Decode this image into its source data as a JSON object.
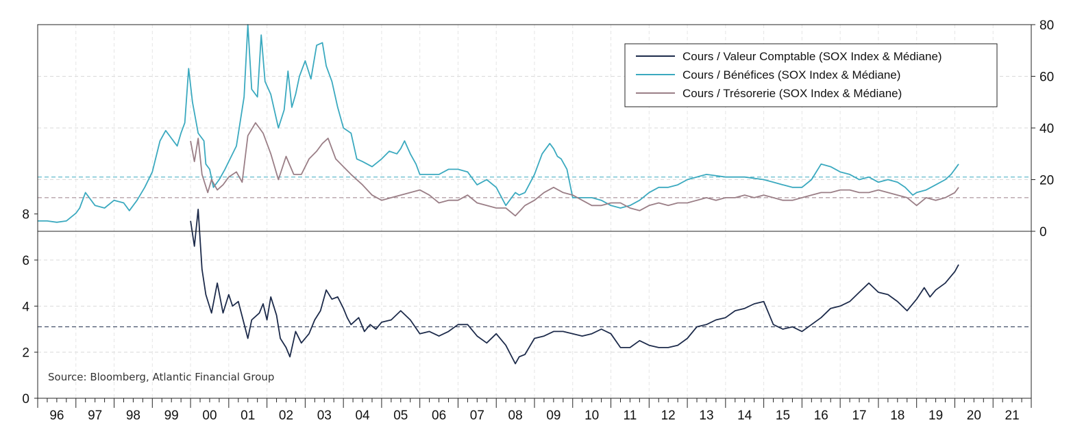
{
  "chart_data": {
    "type": "line",
    "source": "Source: Bloomberg, Atlantic Financial Group",
    "x_tick_labels": [
      "96",
      "97",
      "98",
      "99",
      "00",
      "01",
      "02",
      "03",
      "04",
      "05",
      "06",
      "07",
      "08",
      "09",
      "10",
      "11",
      "12",
      "13",
      "14",
      "15",
      "16",
      "17",
      "18",
      "19",
      "20",
      "21"
    ],
    "x_range": [
      1996.0,
      2022.0
    ],
    "upper_panel": {
      "yaxis_side": "right",
      "ylim": [
        0,
        80
      ],
      "y_ticks": [
        0,
        20,
        40,
        60,
        80
      ],
      "grid": true,
      "legend_position": "top-right",
      "series": [
        {
          "name": "Cours / Bénéfices (SOX Index & Médiane)",
          "color": "#3aa9bf",
          "median": 21,
          "x": [
            1996.0,
            1996.25,
            1996.5,
            1996.75,
            1997.0,
            1997.1,
            1997.25,
            1997.5,
            1997.75,
            1998.0,
            1998.25,
            1998.4,
            1998.6,
            1998.8,
            1999.0,
            1999.2,
            1999.35,
            1999.5,
            1999.65,
            1999.75,
            1999.85,
            1999.95,
            2000.05,
            2000.2,
            2000.35,
            2000.4,
            2000.5,
            2000.6,
            2000.75,
            2000.9,
            2001.0,
            2001.2,
            2001.4,
            2001.5,
            2001.6,
            2001.75,
            2001.85,
            2001.95,
            2002.1,
            2002.3,
            2002.45,
            2002.55,
            2002.65,
            2002.75,
            2002.85,
            2003.0,
            2003.15,
            2003.3,
            2003.45,
            2003.55,
            2003.7,
            2003.85,
            2004.0,
            2004.2,
            2004.35,
            2004.5,
            2004.75,
            2005.0,
            2005.2,
            2005.4,
            2005.5,
            2005.6,
            2005.75,
            2005.9,
            2006.0,
            2006.25,
            2006.5,
            2006.75,
            2007.0,
            2007.25,
            2007.5,
            2007.75,
            2008.0,
            2008.25,
            2008.5,
            2008.6,
            2008.75,
            2009.0,
            2009.2,
            2009.4,
            2009.5,
            2009.6,
            2009.7,
            2009.85,
            2010.0,
            2010.25,
            2010.5,
            2010.75,
            2011.0,
            2011.25,
            2011.5,
            2011.75,
            2012.0,
            2012.25,
            2012.5,
            2012.75,
            2013.0,
            2013.5,
            2014.0,
            2014.5,
            2015.0,
            2015.25,
            2015.5,
            2015.75,
            2016.0,
            2016.25,
            2016.5,
            2016.75,
            2017.0,
            2017.25,
            2017.5,
            2017.75,
            2018.0,
            2018.25,
            2018.5,
            2018.7,
            2018.9,
            2019.0,
            2019.25,
            2019.5,
            2019.75,
            2019.9,
            2020.0,
            2020.1
          ],
          "values": [
            4,
            4,
            3.5,
            4,
            7,
            9,
            15,
            10,
            9,
            12,
            11,
            8,
            12,
            17,
            23,
            35,
            39,
            36,
            33,
            38,
            42,
            63,
            50,
            38,
            35,
            26,
            24,
            17,
            20,
            24,
            27,
            33,
            52,
            80,
            55,
            52,
            76,
            58,
            53,
            40,
            47,
            62,
            48,
            53,
            60,
            66,
            59,
            72,
            73,
            64,
            58,
            48,
            40,
            38,
            28,
            27,
            25,
            28,
            31,
            30,
            32,
            35,
            30,
            26,
            22,
            22,
            22,
            24,
            24,
            23,
            18,
            20,
            17,
            10,
            15,
            14,
            15,
            22,
            30,
            34,
            32,
            29,
            28,
            24,
            13,
            13,
            13,
            12,
            10,
            9,
            10,
            12,
            15,
            17,
            17,
            18,
            20,
            22,
            21,
            21,
            20,
            19,
            18,
            17,
            17,
            20,
            26,
            25,
            23,
            22,
            20,
            21,
            19,
            20,
            19,
            17,
            14,
            15,
            16,
            18,
            20,
            22,
            24,
            26
          ]
        },
        {
          "name": "Cours / Trésorerie (SOX Index & Médiane)",
          "color": "#9a7e86",
          "median": 13,
          "x": [
            2000.0,
            2000.1,
            2000.2,
            2000.3,
            2000.45,
            2000.55,
            2000.7,
            2000.85,
            2001.0,
            2001.2,
            2001.35,
            2001.5,
            2001.7,
            2001.9,
            2002.1,
            2002.3,
            2002.5,
            2002.7,
            2002.9,
            2003.1,
            2003.3,
            2003.45,
            2003.6,
            2003.8,
            2004.0,
            2004.2,
            2004.5,
            2004.75,
            2005.0,
            2005.25,
            2005.5,
            2005.75,
            2006.0,
            2006.25,
            2006.5,
            2006.75,
            2007.0,
            2007.25,
            2007.5,
            2007.75,
            2008.0,
            2008.25,
            2008.5,
            2008.75,
            2009.0,
            2009.25,
            2009.5,
            2009.75,
            2010.0,
            2010.25,
            2010.5,
            2010.75,
            2011.0,
            2011.25,
            2011.5,
            2011.75,
            2012.0,
            2012.25,
            2012.5,
            2012.75,
            2013.0,
            2013.25,
            2013.5,
            2013.75,
            2014.0,
            2014.25,
            2014.5,
            2014.75,
            2015.0,
            2015.25,
            2015.5,
            2015.75,
            2016.0,
            2016.25,
            2016.5,
            2016.75,
            2017.0,
            2017.25,
            2017.5,
            2017.75,
            2018.0,
            2018.25,
            2018.5,
            2018.75,
            2019.0,
            2019.25,
            2019.5,
            2019.75,
            2020.0,
            2020.1
          ],
          "values": [
            35,
            27,
            36,
            22,
            15,
            20,
            16,
            18,
            21,
            23,
            19,
            37,
            42,
            38,
            30,
            20,
            29,
            22,
            22,
            28,
            31,
            34,
            36,
            28,
            25,
            22,
            18,
            14,
            12,
            13,
            14,
            15,
            16,
            14,
            11,
            12,
            12,
            14,
            11,
            10,
            9,
            9,
            6,
            10,
            12,
            15,
            17,
            15,
            14,
            12,
            10,
            10,
            11,
            11,
            9,
            8,
            10,
            11,
            10,
            11,
            11,
            12,
            13,
            12,
            13,
            13,
            14,
            13,
            14,
            13,
            12,
            12,
            13,
            14,
            15,
            15,
            16,
            16,
            15,
            15,
            16,
            15,
            14,
            13,
            10,
            13,
            12,
            13,
            15,
            17
          ]
        }
      ]
    },
    "lower_panel": {
      "yaxis_side": "left",
      "ylim": [
        0,
        9
      ],
      "y_ticks": [
        0,
        2,
        4,
        6,
        8
      ],
      "grid": true,
      "series": [
        {
          "name": "Cours / Valeur Comptable (SOX Index & Médiane)",
          "color": "#1c2a4a",
          "median": 3.1,
          "x": [
            2000.0,
            2000.1,
            2000.2,
            2000.3,
            2000.4,
            2000.55,
            2000.7,
            2000.85,
            2001.0,
            2001.1,
            2001.25,
            2001.5,
            2001.6,
            2001.8,
            2001.9,
            2002.0,
            2002.1,
            2002.25,
            2002.35,
            2002.5,
            2002.6,
            2002.75,
            2002.9,
            2003.1,
            2003.25,
            2003.4,
            2003.55,
            2003.7,
            2003.85,
            2004.0,
            2004.1,
            2004.2,
            2004.4,
            2004.55,
            2004.7,
            2004.85,
            2005.0,
            2005.25,
            2005.5,
            2005.75,
            2006.0,
            2006.25,
            2006.5,
            2006.75,
            2007.0,
            2007.25,
            2007.5,
            2007.75,
            2008.0,
            2008.25,
            2008.5,
            2008.6,
            2008.75,
            2009.0,
            2009.25,
            2009.5,
            2009.75,
            2010.0,
            2010.25,
            2010.5,
            2010.75,
            2011.0,
            2011.25,
            2011.5,
            2011.75,
            2012.0,
            2012.25,
            2012.5,
            2012.75,
            2013.0,
            2013.25,
            2013.5,
            2013.75,
            2014.0,
            2014.25,
            2014.5,
            2014.75,
            2015.0,
            2015.25,
            2015.5,
            2015.75,
            2016.0,
            2016.25,
            2016.5,
            2016.75,
            2017.0,
            2017.25,
            2017.5,
            2017.75,
            2018.0,
            2018.25,
            2018.5,
            2018.75,
            2019.0,
            2019.2,
            2019.35,
            2019.5,
            2019.75,
            2020.0,
            2020.1
          ],
          "values": [
            7.7,
            6.6,
            8.2,
            5.6,
            4.5,
            3.7,
            5.0,
            3.7,
            4.5,
            4.0,
            4.2,
            2.6,
            3.4,
            3.7,
            4.1,
            3.4,
            4.4,
            3.6,
            2.6,
            2.2,
            1.8,
            2.9,
            2.4,
            2.8,
            3.4,
            3.8,
            4.7,
            4.3,
            4.4,
            3.9,
            3.5,
            3.2,
            3.5,
            2.9,
            3.2,
            3.0,
            3.3,
            3.4,
            3.8,
            3.4,
            2.8,
            2.9,
            2.7,
            2.9,
            3.2,
            3.2,
            2.7,
            2.4,
            2.8,
            2.3,
            1.5,
            1.8,
            1.9,
            2.6,
            2.7,
            2.9,
            2.9,
            2.8,
            2.7,
            2.8,
            3.0,
            2.8,
            2.2,
            2.2,
            2.5,
            2.3,
            2.2,
            2.2,
            2.3,
            2.6,
            3.1,
            3.2,
            3.4,
            3.5,
            3.8,
            3.9,
            4.1,
            4.2,
            3.2,
            3.0,
            3.1,
            2.9,
            3.2,
            3.5,
            3.9,
            4.0,
            4.2,
            4.6,
            5.0,
            4.6,
            4.5,
            4.2,
            3.8,
            4.3,
            4.8,
            4.4,
            4.7,
            5.0,
            5.5,
            5.8
          ]
        }
      ]
    },
    "legend": [
      {
        "label": "Cours / Valeur Comptable (SOX Index & Médiane)",
        "color": "#1c2a4a"
      },
      {
        "label": "Cours / Bénéfices (SOX Index & Médiane)",
        "color": "#3aa9bf"
      },
      {
        "label": "Cours / Trésorerie (SOX Index & Médiane)",
        "color": "#9a7e86"
      }
    ]
  }
}
